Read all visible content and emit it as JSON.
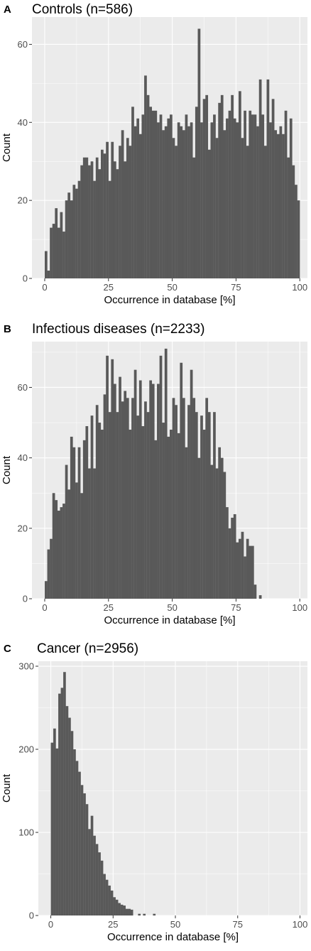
{
  "chart_data": [
    {
      "type": "bar",
      "panel_label": "A",
      "title": "Controls (n=586)",
      "xlabel": "Occurrence in database [%]",
      "ylabel": "Count",
      "xlim": [
        -5,
        103
      ],
      "ylim": [
        0,
        67
      ],
      "xticks": [
        0,
        25,
        50,
        75,
        100
      ],
      "yticks": [
        0,
        20,
        40,
        60
      ],
      "bin_width": 1,
      "bin_start": 0,
      "grid": true,
      "values": [
        7,
        2,
        13,
        14,
        18,
        13,
        17,
        12,
        20,
        22,
        20,
        24,
        23,
        25,
        29,
        31,
        31,
        29,
        30,
        25,
        31,
        28,
        33,
        32,
        35,
        25,
        35,
        30,
        28,
        34,
        38,
        30,
        36,
        34,
        44,
        39,
        41,
        37,
        42,
        52,
        47,
        44,
        43,
        43,
        40,
        42,
        38,
        39,
        41,
        42,
        36,
        34,
        40,
        39,
        38,
        42,
        39,
        40,
        31,
        44,
        64,
        40,
        46,
        47,
        33,
        40,
        42,
        36,
        45,
        47,
        38,
        41,
        43,
        47,
        41,
        40,
        48,
        36,
        43,
        34,
        43,
        42,
        42,
        39,
        51,
        42,
        34,
        51,
        40,
        46,
        38,
        37,
        39,
        37,
        43,
        31,
        41,
        29,
        24,
        20
      ]
    },
    {
      "type": "bar",
      "panel_label": "B",
      "title": "Infectious diseases (n=2233)",
      "xlabel": "Occurrence in database [%]",
      "ylabel": "Count",
      "xlim": [
        -5,
        103
      ],
      "ylim": [
        0,
        73
      ],
      "xticks": [
        0,
        25,
        50,
        75,
        100
      ],
      "yticks": [
        0,
        20,
        40,
        60
      ],
      "bin_width": 1,
      "bin_start": 0,
      "grid": true,
      "values": [
        5,
        14,
        17,
        30,
        28,
        25,
        26,
        27,
        38,
        31,
        46,
        43,
        33,
        43,
        30,
        45,
        49,
        37,
        52,
        37,
        55,
        50,
        48,
        58,
        69,
        53,
        68,
        61,
        53,
        63,
        56,
        59,
        57,
        48,
        57,
        65,
        52,
        62,
        49,
        56,
        53,
        62,
        61,
        45,
        61,
        69,
        50,
        71,
        46,
        48,
        57,
        55,
        47,
        67,
        57,
        43,
        55,
        65,
        57,
        53,
        40,
        52,
        48,
        57,
        53,
        38,
        53,
        37,
        43,
        40,
        36,
        26,
        20,
        23,
        24,
        16,
        17,
        19,
        12,
        17,
        15,
        15,
        4,
        0,
        1
      ]
    },
    {
      "type": "bar",
      "panel_label": "C",
      "title": "Cancer (n=2956)",
      "xlabel": "Occurrence in database [%]",
      "ylabel": "Count",
      "xlim": [
        -5,
        103
      ],
      "ylim": [
        0,
        306
      ],
      "xticks": [
        0,
        25,
        50,
        75,
        100
      ],
      "yticks": [
        0,
        100,
        200,
        300
      ],
      "bin_width": 1,
      "bin_start": 0,
      "grid": true,
      "values": [
        208,
        225,
        201,
        267,
        274,
        293,
        252,
        238,
        222,
        200,
        186,
        173,
        157,
        147,
        134,
        104,
        120,
        96,
        86,
        76,
        66,
        50,
        43,
        36,
        30,
        22,
        19,
        15,
        13,
        12,
        8,
        8,
        7,
        0,
        0,
        2,
        0,
        2,
        0,
        0,
        0,
        2
      ]
    }
  ]
}
